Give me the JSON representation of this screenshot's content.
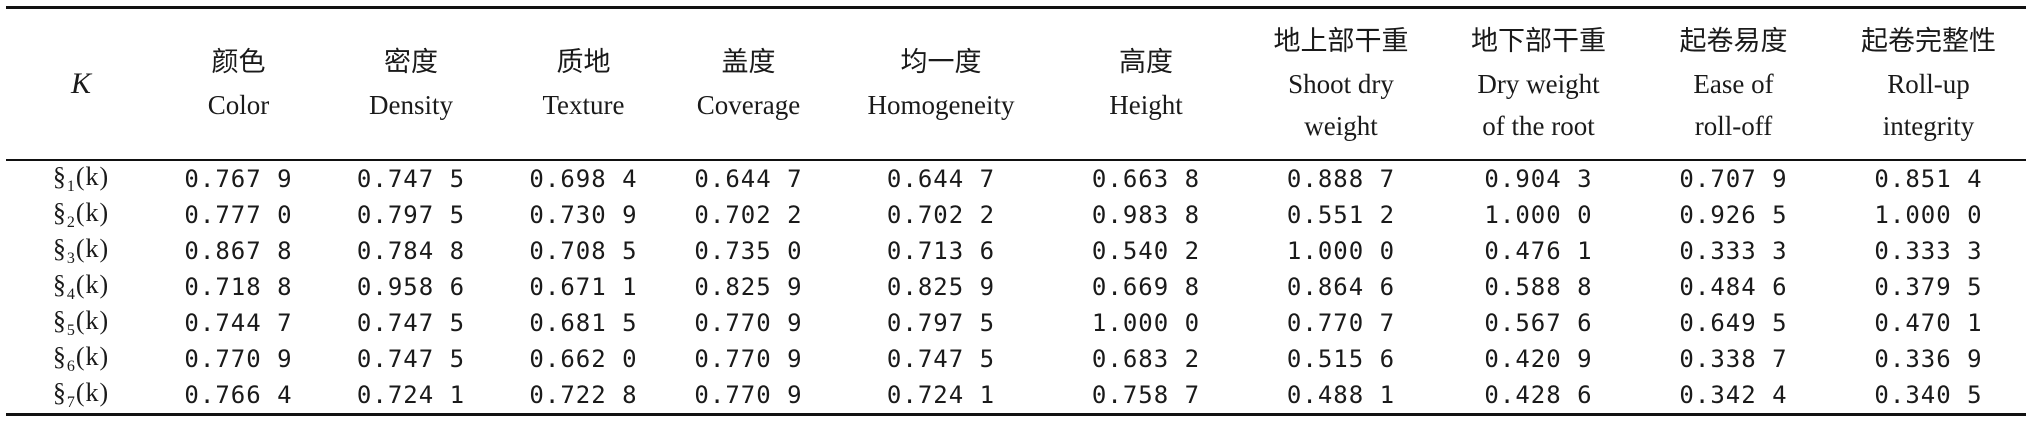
{
  "table": {
    "k_header": "K",
    "columns": [
      {
        "zh": "颜色",
        "en": [
          "Color"
        ]
      },
      {
        "zh": "密度",
        "en": [
          "Density"
        ]
      },
      {
        "zh": "质地",
        "en": [
          "Texture"
        ]
      },
      {
        "zh": "盖度",
        "en": [
          "Coverage"
        ]
      },
      {
        "zh": "均一度",
        "en": [
          "Homogeneity"
        ]
      },
      {
        "zh": "高度",
        "en": [
          "Height"
        ]
      },
      {
        "zh": "地上部干重",
        "en": [
          "Shoot dry",
          "weight"
        ]
      },
      {
        "zh": "地下部干重",
        "en": [
          "Dry weight",
          "of the root"
        ]
      },
      {
        "zh": "起卷易度",
        "en": [
          "Ease of",
          "roll-off"
        ]
      },
      {
        "zh": "起卷完整性",
        "en": [
          "Roll-up",
          "integrity"
        ]
      }
    ],
    "rows": [
      {
        "sym": "§",
        "sub": "1",
        "suffix": "(k)",
        "values": [
          "0.767 9",
          "0.747 5",
          "0.698 4",
          "0.644 7",
          "0.644 7",
          "0.663 8",
          "0.888 7",
          "0.904 3",
          "0.707 9",
          "0.851 4"
        ]
      },
      {
        "sym": "§",
        "sub": "2",
        "suffix": "(k)",
        "values": [
          "0.777 0",
          "0.797 5",
          "0.730 9",
          "0.702 2",
          "0.702 2",
          "0.983 8",
          "0.551 2",
          "1.000 0",
          "0.926 5",
          "1.000 0"
        ]
      },
      {
        "sym": "§",
        "sub": "3",
        "suffix": "(k)",
        "values": [
          "0.867 8",
          "0.784 8",
          "0.708 5",
          "0.735 0",
          "0.713 6",
          "0.540 2",
          "1.000 0",
          "0.476 1",
          "0.333 3",
          "0.333 3"
        ]
      },
      {
        "sym": "§",
        "sub": "4",
        "suffix": "(k)",
        "values": [
          "0.718 8",
          "0.958 6",
          "0.671 1",
          "0.825 9",
          "0.825 9",
          "0.669 8",
          "0.864 6",
          "0.588 8",
          "0.484 6",
          "0.379 5"
        ]
      },
      {
        "sym": "§",
        "sub": "5",
        "suffix": "(k)",
        "values": [
          "0.744 7",
          "0.747 5",
          "0.681 5",
          "0.770 9",
          "0.797 5",
          "1.000 0",
          "0.770 7",
          "0.567 6",
          "0.649 5",
          "0.470 1"
        ]
      },
      {
        "sym": "§",
        "sub": "6",
        "suffix": "(k)",
        "values": [
          "0.770 9",
          "0.747 5",
          "0.662 0",
          "0.770 9",
          "0.747 5",
          "0.683 2",
          "0.515 6",
          "0.420 9",
          "0.338 7",
          "0.336 9"
        ]
      },
      {
        "sym": "§",
        "sub": "7",
        "suffix": "(k)",
        "values": [
          "0.766 4",
          "0.724 1",
          "0.722 8",
          "0.770 9",
          "0.724 1",
          "0.758 7",
          "0.488 1",
          "0.428 6",
          "0.342 4",
          "0.340 5"
        ]
      }
    ]
  }
}
